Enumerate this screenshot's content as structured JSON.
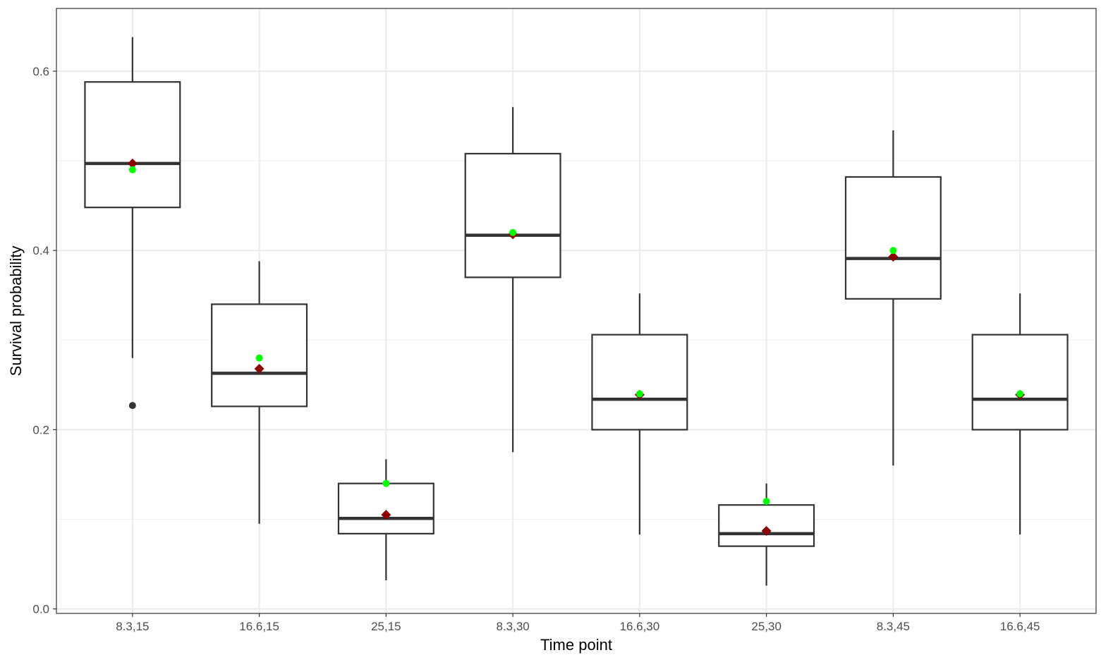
{
  "chart_data": {
    "type": "boxplot",
    "title": "",
    "xlabel": "Time point",
    "ylabel": "Survival probability",
    "ylim": [
      -0.005,
      0.67
    ],
    "yticks": [
      0.0,
      0.2,
      0.4,
      0.6
    ],
    "ytick_labels": [
      "0.0",
      "0.2",
      "0.4",
      "0.6"
    ],
    "grid": true,
    "categories": [
      "8.3,15",
      "16.6,15",
      "25,15",
      "8.3,30",
      "16.6,30",
      "25,30",
      "8.3,45",
      "16.6,45"
    ],
    "boxes": [
      {
        "category": "8.3,15",
        "whisker_low": 0.28,
        "q1": 0.448,
        "median": 0.497,
        "q3": 0.588,
        "whisker_high": 0.638,
        "outliers": [
          0.227
        ],
        "point_green": 0.49,
        "point_red": 0.497
      },
      {
        "category": "16.6,15",
        "whisker_low": 0.095,
        "q1": 0.226,
        "median": 0.263,
        "q3": 0.34,
        "whisker_high": 0.388,
        "outliers": [],
        "point_green": 0.28,
        "point_red": 0.268
      },
      {
        "category": "25,15",
        "whisker_low": 0.032,
        "q1": 0.084,
        "median": 0.101,
        "q3": 0.14,
        "whisker_high": 0.167,
        "outliers": [],
        "point_green": 0.14,
        "point_red": 0.105
      },
      {
        "category": "8.3,30",
        "whisker_low": 0.175,
        "q1": 0.37,
        "median": 0.417,
        "q3": 0.508,
        "whisker_high": 0.56,
        "outliers": [],
        "point_green": 0.42,
        "point_red": 0.418
      },
      {
        "category": "16.6,30",
        "whisker_low": 0.083,
        "q1": 0.2,
        "median": 0.234,
        "q3": 0.306,
        "whisker_high": 0.352,
        "outliers": [],
        "point_green": 0.24,
        "point_red": 0.239
      },
      {
        "category": "25,30",
        "whisker_low": 0.026,
        "q1": 0.07,
        "median": 0.084,
        "q3": 0.116,
        "whisker_high": 0.14,
        "outliers": [],
        "point_green": 0.12,
        "point_red": 0.087
      },
      {
        "category": "8.3,45",
        "whisker_low": 0.16,
        "q1": 0.346,
        "median": 0.391,
        "q3": 0.482,
        "whisker_high": 0.534,
        "outliers": [],
        "point_green": 0.4,
        "point_red": 0.393
      },
      {
        "category": "16.6,45",
        "whisker_low": 0.083,
        "q1": 0.2,
        "median": 0.234,
        "q3": 0.306,
        "whisker_high": 0.352,
        "outliers": [],
        "point_green": 0.24,
        "point_red": 0.239
      }
    ],
    "colors": {
      "box_stroke": "#333333",
      "outlier": "#333333",
      "point_green": "#00ff00",
      "point_red": "#8b0000",
      "grid_major": "#ebebeb",
      "grid_minor": "#f2f2f2",
      "panel_border": "#333333"
    }
  }
}
